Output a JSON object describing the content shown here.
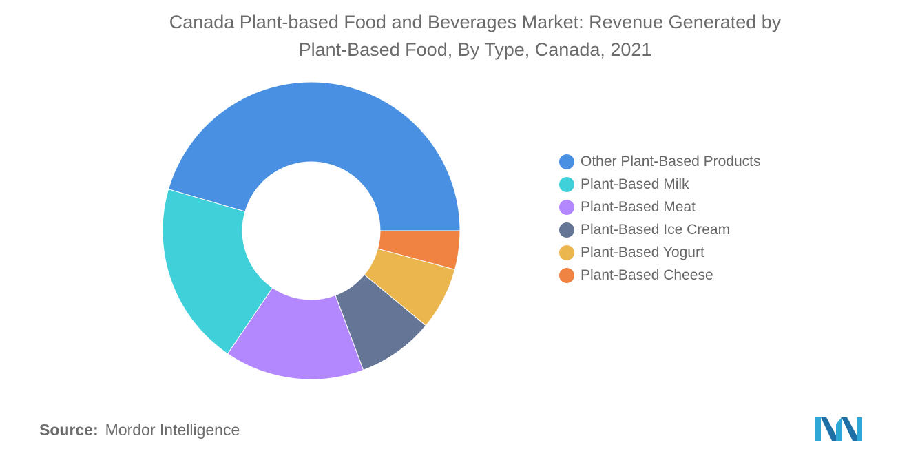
{
  "title": {
    "line1": "Canada Plant-based Food and Beverages Market: Revenue Generated by",
    "line2": "Plant-Based Food, By Type, Canada, 2021"
  },
  "source": {
    "label": "Source:",
    "value": "Mordor Intelligence"
  },
  "logo": {
    "icon": "mordor-intelligence-logo"
  },
  "chart_data": {
    "type": "pie",
    "style": "donut",
    "title": "Canada Plant-based Food and Beverages Market: Revenue Generated by Plant-Based Food, By Type, Canada, 2021",
    "legend_position": "right",
    "categories": [
      "Other Plant-Based Products",
      "Plant-Based Milk",
      "Plant-Based Meat",
      "Plant-Based Ice Cream",
      "Plant-Based Yogurt",
      "Plant-Based Cheese"
    ],
    "values": [
      45.5,
      20.0,
      15.2,
      8.3,
      6.8,
      4.2
    ],
    "colors": [
      "#4a90e2",
      "#40d0da",
      "#b388ff",
      "#647596",
      "#ecb64e",
      "#f08341"
    ]
  }
}
